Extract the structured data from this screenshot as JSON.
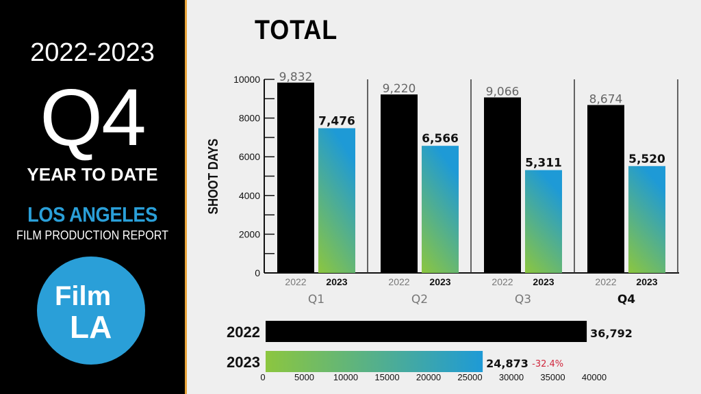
{
  "left_panel": {
    "years": "2022-2023",
    "quarter": "Q4",
    "subtitle": "YEAR TO DATE",
    "city": "LOS ANGELES",
    "report": "FILM PRODUCTION REPORT",
    "logo": "Film LA"
  },
  "colors": {
    "y2022": "#000000",
    "gradient_top": "#1e9ad6",
    "gradient_bottom": "#8cc63f",
    "accent": "#e8a43a",
    "negative": "#d0263c",
    "brand": "#2a9fd8"
  },
  "chart_data": [
    {
      "type": "bar",
      "title": "TOTAL",
      "ylabel": "SHOOT DAYS",
      "ylim": [
        0,
        10000
      ],
      "yticks": [
        0,
        2000,
        4000,
        6000,
        8000,
        10000
      ],
      "categories": [
        "Q1",
        "Q2",
        "Q3",
        "Q4"
      ],
      "series": [
        {
          "name": "2022",
          "values": [
            9832,
            9220,
            9066,
            8674
          ],
          "labels": [
            "9,832",
            "9,220",
            "9,066",
            "8,674"
          ]
        },
        {
          "name": "2023",
          "values": [
            7476,
            6566,
            5311,
            5520
          ],
          "labels": [
            "7,476",
            "6,566",
            "5,311",
            "5,520"
          ]
        }
      ]
    },
    {
      "type": "bar",
      "orientation": "horizontal",
      "categories": [
        "2022",
        "2023"
      ],
      "values": [
        36792,
        24873
      ],
      "labels": [
        "36,792",
        "24,873"
      ],
      "change": "-32.4%",
      "xlim": [
        0,
        40000
      ],
      "xticks": [
        0,
        5000,
        10000,
        15000,
        20000,
        25000,
        30000,
        35000,
        40000
      ]
    }
  ]
}
